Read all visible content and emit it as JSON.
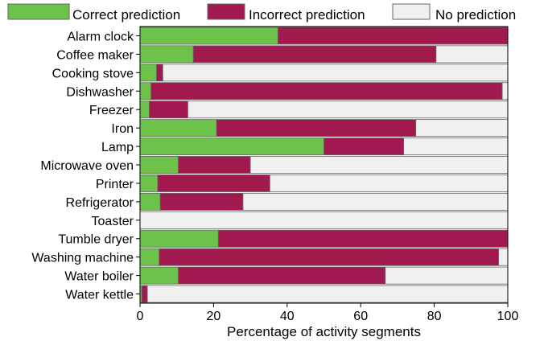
{
  "chart_data": {
    "type": "bar",
    "orientation": "horizontal",
    "stacked": true,
    "categories": [
      "Alarm clock",
      "Coffee maker",
      "Cooking stove",
      "Dishwasher",
      "Freezer",
      "Iron",
      "Lamp",
      "Microwave oven",
      "Printer",
      "Refrigerator",
      "Toaster",
      "Tumble dryer",
      "Washing machine",
      "Water boiler",
      "Water kettle"
    ],
    "series": [
      {
        "name": "Correct prediction",
        "color": "#6cc24a",
        "values": [
          37.5,
          14.5,
          4.5,
          3.0,
          2.5,
          20.8,
          50.0,
          10.4,
          4.8,
          5.5,
          0.0,
          21.3,
          5.2,
          10.4,
          0.5
        ]
      },
      {
        "name": "Incorrect prediction",
        "color": "#a01a4f",
        "values": [
          62.5,
          66.0,
          1.7,
          95.5,
          10.5,
          54.2,
          21.7,
          19.6,
          30.5,
          22.5,
          0.0,
          78.7,
          92.3,
          56.3,
          1.5
        ]
      },
      {
        "name": "No prediction",
        "color": "#f0f0f0",
        "values": [
          0.0,
          19.5,
          93.8,
          1.5,
          87.0,
          25.0,
          28.3,
          70.0,
          64.7,
          72.0,
          100.0,
          0.0,
          2.5,
          33.3,
          98.0
        ]
      }
    ],
    "xlabel": "Percentage of activity segments",
    "ylabel": "",
    "xlim": [
      0,
      100
    ],
    "xticks": [
      0,
      20,
      40,
      60,
      80,
      100
    ],
    "legend_position": "top",
    "grid": false
  }
}
